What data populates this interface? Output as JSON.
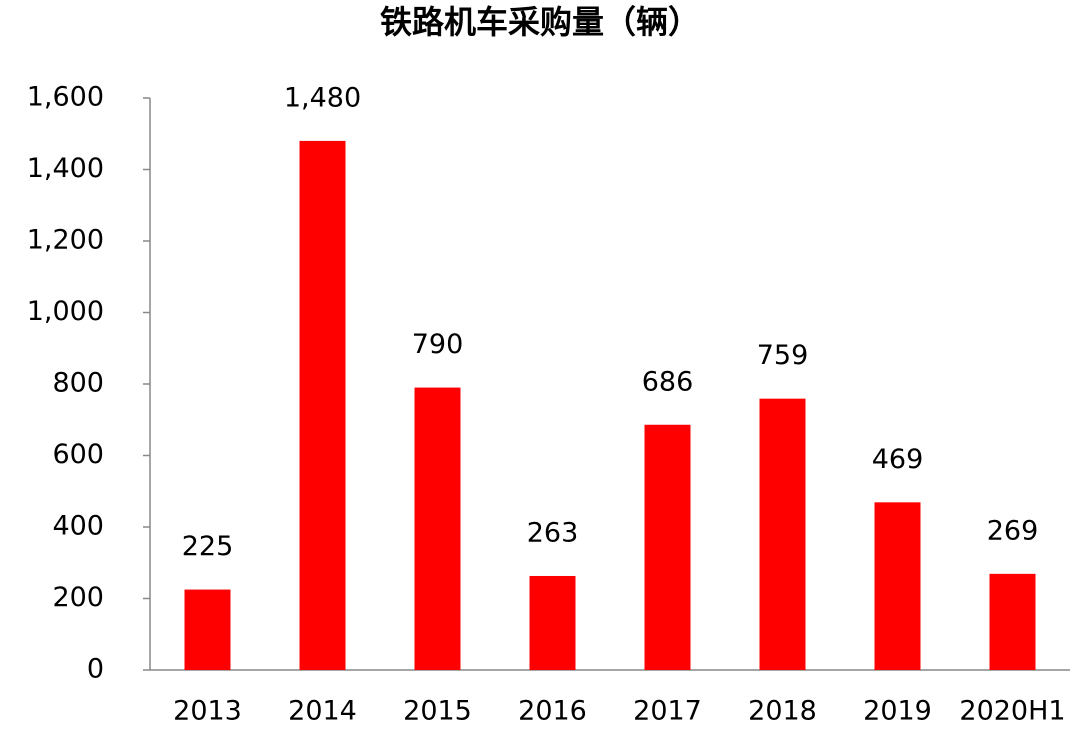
{
  "chart_data": {
    "type": "bar",
    "title": "铁路机车采购量（辆）",
    "categories": [
      "2013",
      "2014",
      "2015",
      "2016",
      "2017",
      "2018",
      "2019",
      "2020H1"
    ],
    "values": [
      225,
      1480,
      790,
      263,
      686,
      759,
      469,
      269
    ],
    "value_labels": [
      "225",
      "1,480",
      "790",
      "263",
      "686",
      "759",
      "469",
      "269"
    ],
    "color": "#ff0000",
    "ylim": [
      0,
      1600
    ],
    "yticks": [
      0,
      200,
      400,
      600,
      800,
      {
        "value": 1000,
        "label": "1,000"
      },
      {
        "value": 1200,
        "label": "1,200"
      },
      {
        "value": 1400,
        "label": "1,400"
      },
      {
        "value": 1600,
        "label": "1,600"
      }
    ],
    "grid": false
  }
}
